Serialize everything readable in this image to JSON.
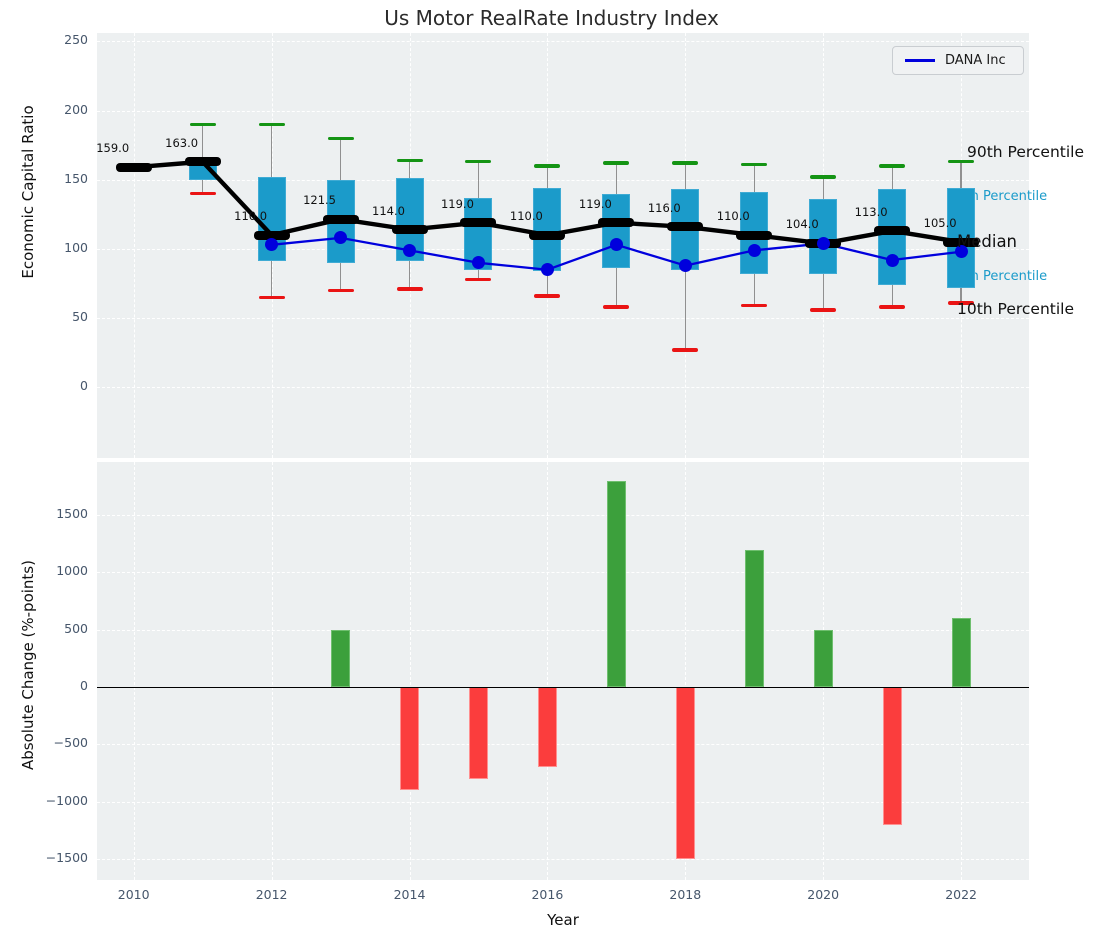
{
  "title": "Us Motor RealRate Industry Index",
  "legend": {
    "label": "DANA Inc"
  },
  "right_labels": {
    "p90": "90th Percentile",
    "p75": "75th Percentile",
    "median": "Median",
    "p25": "25th Percentile",
    "p10": "10th Percentile"
  },
  "colors": {
    "box": "#1b9bca",
    "median_line": "#000000",
    "dana_line": "#0000dd",
    "p90_cap": "#149414",
    "p10_cap": "#ea1414",
    "bar_positive": "#3ca03c",
    "bar_negative": "#fb3d3d",
    "plot_background": "#edf0f1",
    "tick_text": "#46566b"
  },
  "chart_data": [
    {
      "type": "boxplot",
      "title": "Us Motor RealRate Industry Index",
      "ylabel": "Economic Capital Ratio",
      "ylim": [
        -51,
        256
      ],
      "yticks": [
        0,
        50,
        100,
        150,
        200,
        250
      ],
      "x": [
        2010,
        2011,
        2012,
        2013,
        2014,
        2015,
        2016,
        2017,
        2018,
        2019,
        2020,
        2021,
        2022
      ],
      "xticks": [
        2010,
        2012,
        2014,
        2016,
        2018,
        2020,
        2022
      ],
      "grid": true,
      "legend_position": "upper right",
      "series": [
        {
          "name": "90th Percentile",
          "values": [
            161,
            190,
            190,
            180,
            164,
            163,
            160,
            162,
            162,
            161,
            152,
            160,
            163
          ]
        },
        {
          "name": "75th Percentile",
          "values": [
            null,
            163,
            152,
            150,
            151,
            137,
            144,
            140,
            143,
            141,
            136,
            143,
            144
          ]
        },
        {
          "name": "Median",
          "values": [
            159,
            163,
            110,
            121.5,
            114,
            119,
            110,
            119,
            116,
            110,
            104,
            113,
            105
          ]
        },
        {
          "name": "25th Percentile",
          "values": [
            null,
            150,
            91,
            90,
            91,
            85,
            84,
            86,
            85,
            82,
            82,
            74,
            72
          ]
        },
        {
          "name": "10th Percentile",
          "values": [
            null,
            140,
            65,
            70,
            71,
            78,
            66,
            58,
            27,
            59,
            56,
            58,
            61
          ]
        },
        {
          "name": "DANA Inc",
          "values": [
            null,
            null,
            103,
            108,
            99,
            90,
            85,
            103,
            88,
            99,
            104,
            92,
            98
          ]
        }
      ],
      "median_labels": [
        "159.0",
        "163.0",
        "110.0",
        "121.5",
        "114.0",
        "119.0",
        "110.0",
        "119.0",
        "116.0",
        "110.0",
        "104.0",
        "113.0",
        "105.0"
      ]
    },
    {
      "type": "bar",
      "ylabel": "Absolute Change (%-points)",
      "xlabel": "Year",
      "ylim": [
        -1684,
        1964
      ],
      "yticks": [
        1500,
        1000,
        500,
        0,
        -500,
        -1000,
        -1500
      ],
      "x": [
        2010,
        2011,
        2012,
        2013,
        2014,
        2015,
        2016,
        2017,
        2018,
        2019,
        2020,
        2021,
        2022
      ],
      "xticks": [
        2010,
        2012,
        2014,
        2016,
        2018,
        2020,
        2022
      ],
      "grid": true,
      "values": [
        null,
        null,
        null,
        500,
        -900,
        -800,
        -700,
        1800,
        -1500,
        1200,
        500,
        -1200,
        600
      ]
    }
  ]
}
